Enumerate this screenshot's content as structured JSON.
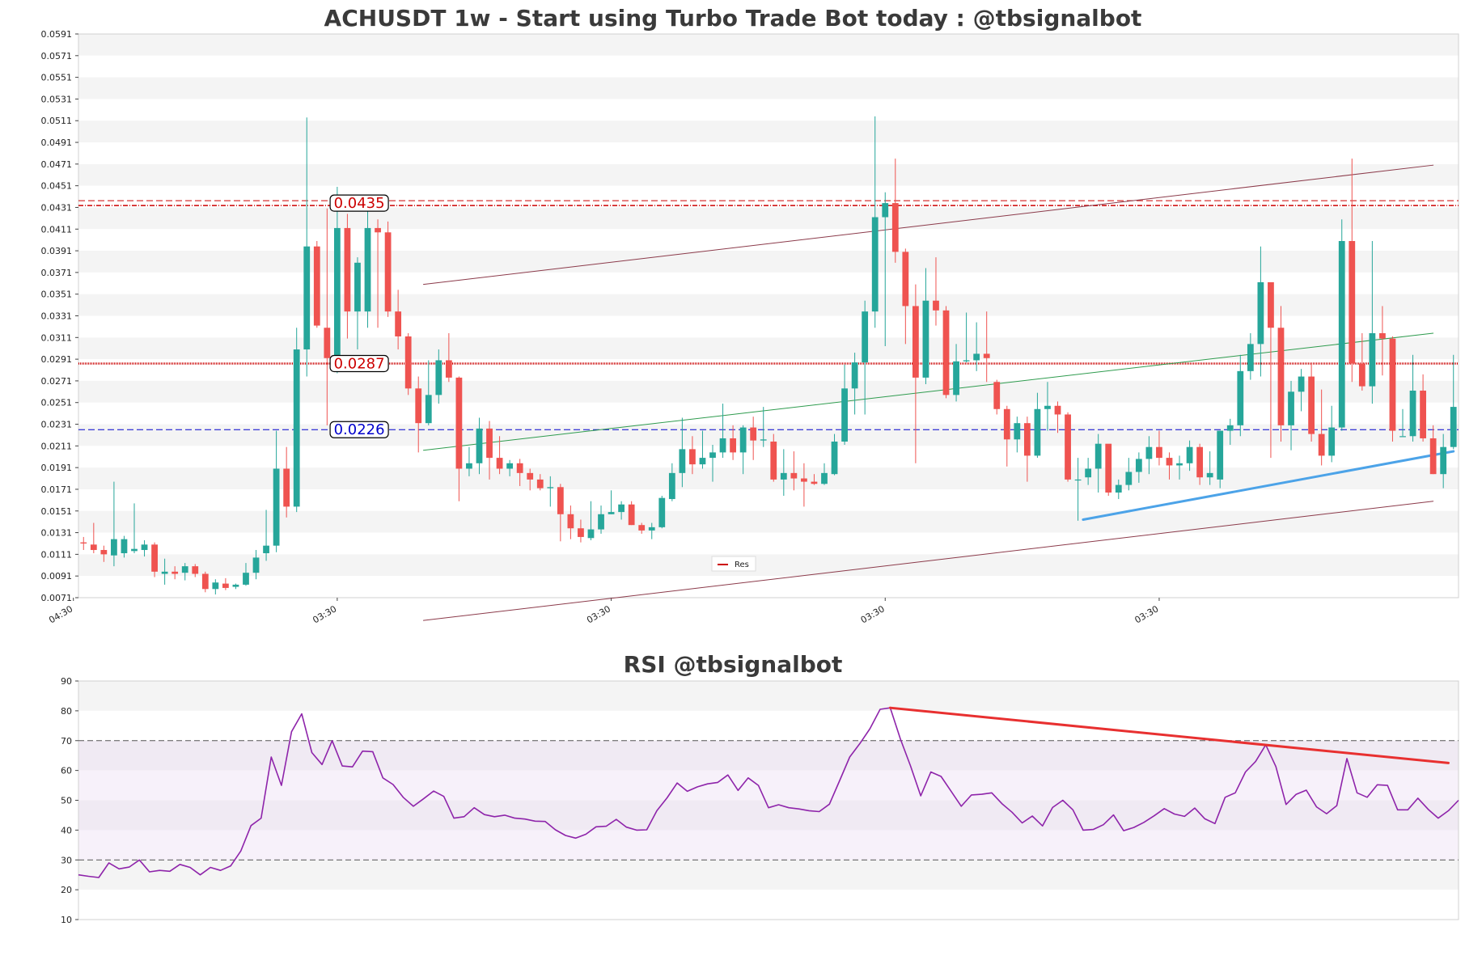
{
  "chart_data": [
    {
      "type": "candlestick",
      "title": "ACHUSDT 1w - Start using Turbo Trade Bot today : @tbsignalbot",
      "ylim": [
        0.0071,
        0.0591
      ],
      "yticks": [
        "0.0591",
        "0.0571",
        "0.0551",
        "0.0531",
        "0.0511",
        "0.0491",
        "0.0471",
        "0.0451",
        "0.0431",
        "0.0411",
        "0.0391",
        "0.0371",
        "0.0351",
        "0.0331",
        "0.0311",
        "0.0291",
        "0.0271",
        "0.0251",
        "0.0231",
        "0.0211",
        "0.0191",
        "0.0171",
        "0.0151",
        "0.0131",
        "0.0111",
        "0.0091",
        "0.0071"
      ],
      "xticks": [
        {
          "label": "04:30",
          "index": -1
        },
        {
          "label": "03:30",
          "index": 25
        },
        {
          "label": "03:30",
          "index": 52
        },
        {
          "label": "03:30",
          "index": 79
        },
        {
          "label": "03:30",
          "index": 106
        }
      ],
      "n_slots": 136,
      "candles": [
        [
          0.0122,
          0.0127,
          0.0115,
          0.0121
        ],
        [
          0.012,
          0.014,
          0.0112,
          0.0115
        ],
        [
          0.0115,
          0.0119,
          0.0104,
          0.0111
        ],
        [
          0.011,
          0.0178,
          0.01,
          0.0125
        ],
        [
          0.0112,
          0.0128,
          0.0108,
          0.0125
        ],
        [
          0.0114,
          0.0158,
          0.0112,
          0.0116
        ],
        [
          0.0115,
          0.0124,
          0.0109,
          0.012
        ],
        [
          0.012,
          0.0122,
          0.009,
          0.0095
        ],
        [
          0.0093,
          0.0107,
          0.0083,
          0.0095
        ],
        [
          0.0095,
          0.01,
          0.0088,
          0.0093
        ],
        [
          0.0094,
          0.0103,
          0.0087,
          0.01
        ],
        [
          0.01,
          0.0102,
          0.009,
          0.0093
        ],
        [
          0.0093,
          0.0095,
          0.0076,
          0.0079
        ],
        [
          0.0079,
          0.0088,
          0.0074,
          0.0085
        ],
        [
          0.0084,
          0.0089,
          0.0078,
          0.008
        ],
        [
          0.0081,
          0.0084,
          0.0079,
          0.0083
        ],
        [
          0.0083,
          0.0103,
          0.0082,
          0.0094
        ],
        [
          0.0094,
          0.0115,
          0.0088,
          0.0108
        ],
        [
          0.0112,
          0.0152,
          0.0105,
          0.0119
        ],
        [
          0.0119,
          0.0225,
          0.0113,
          0.019
        ],
        [
          0.019,
          0.021,
          0.0145,
          0.0155
        ],
        [
          0.0155,
          0.032,
          0.015,
          0.03
        ],
        [
          0.03,
          0.0514,
          0.0275,
          0.0395
        ],
        [
          0.0395,
          0.04,
          0.032,
          0.0322
        ],
        [
          0.032,
          0.043,
          0.023,
          0.0292
        ],
        [
          0.0292,
          0.045,
          0.0278,
          0.0412
        ],
        [
          0.0412,
          0.0425,
          0.031,
          0.0335
        ],
        [
          0.0335,
          0.0385,
          0.03,
          0.038
        ],
        [
          0.0335,
          0.043,
          0.032,
          0.0412
        ],
        [
          0.0412,
          0.042,
          0.032,
          0.0408
        ],
        [
          0.0408,
          0.0418,
          0.033,
          0.0335
        ],
        [
          0.0335,
          0.0355,
          0.03,
          0.0312
        ],
        [
          0.0312,
          0.0315,
          0.0258,
          0.0264
        ],
        [
          0.0264,
          0.0275,
          0.0205,
          0.0232
        ],
        [
          0.0232,
          0.029,
          0.023,
          0.0258
        ],
        [
          0.0258,
          0.03,
          0.025,
          0.029
        ],
        [
          0.029,
          0.0315,
          0.027,
          0.0274
        ],
        [
          0.0274,
          0.0275,
          0.016,
          0.019
        ],
        [
          0.019,
          0.021,
          0.0183,
          0.0195
        ],
        [
          0.0195,
          0.0237,
          0.0185,
          0.0227
        ],
        [
          0.0227,
          0.0234,
          0.018,
          0.02
        ],
        [
          0.02,
          0.022,
          0.0185,
          0.019
        ],
        [
          0.019,
          0.0198,
          0.0183,
          0.0195
        ],
        [
          0.0195,
          0.0199,
          0.0174,
          0.0186
        ],
        [
          0.0186,
          0.019,
          0.017,
          0.018
        ],
        [
          0.018,
          0.0185,
          0.017,
          0.0172
        ],
        [
          0.0172,
          0.0183,
          0.0155,
          0.0173
        ],
        [
          0.0173,
          0.0176,
          0.0123,
          0.0148
        ],
        [
          0.0148,
          0.0156,
          0.0125,
          0.0135
        ],
        [
          0.0135,
          0.0143,
          0.0122,
          0.0127
        ],
        [
          0.0126,
          0.016,
          0.0124,
          0.0134
        ],
        [
          0.0134,
          0.0156,
          0.013,
          0.0148
        ],
        [
          0.0148,
          0.017,
          0.0148,
          0.015
        ],
        [
          0.015,
          0.016,
          0.0143,
          0.0157
        ],
        [
          0.0157,
          0.016,
          0.0138,
          0.0138
        ],
        [
          0.0138,
          0.014,
          0.013,
          0.0133
        ],
        [
          0.0133,
          0.014,
          0.0125,
          0.0136
        ],
        [
          0.0136,
          0.0165,
          0.0135,
          0.0163
        ],
        [
          0.0162,
          0.0195,
          0.016,
          0.0186
        ],
        [
          0.0186,
          0.0237,
          0.0173,
          0.0208
        ],
        [
          0.0208,
          0.022,
          0.0185,
          0.0194
        ],
        [
          0.0194,
          0.0225,
          0.019,
          0.02
        ],
        [
          0.02,
          0.0212,
          0.0178,
          0.0205
        ],
        [
          0.0205,
          0.025,
          0.02,
          0.0218
        ],
        [
          0.0218,
          0.023,
          0.0198,
          0.0205
        ],
        [
          0.0205,
          0.023,
          0.0185,
          0.0228
        ],
        [
          0.0228,
          0.0238,
          0.0198,
          0.0216
        ],
        [
          0.0216,
          0.0247,
          0.021,
          0.0217
        ],
        [
          0.0215,
          0.0222,
          0.0178,
          0.018
        ],
        [
          0.018,
          0.0208,
          0.0165,
          0.0186
        ],
        [
          0.0186,
          0.0206,
          0.017,
          0.0181
        ],
        [
          0.0181,
          0.0195,
          0.0155,
          0.0178
        ],
        [
          0.0178,
          0.0185,
          0.0175,
          0.0176
        ],
        [
          0.0176,
          0.0195,
          0.0175,
          0.0186
        ],
        [
          0.0185,
          0.0222,
          0.0184,
          0.0215
        ],
        [
          0.0215,
          0.0286,
          0.0212,
          0.0264
        ],
        [
          0.0264,
          0.0297,
          0.024,
          0.0288
        ],
        [
          0.0288,
          0.0345,
          0.024,
          0.0335
        ],
        [
          0.0335,
          0.0515,
          0.032,
          0.0422
        ],
        [
          0.0422,
          0.0445,
          0.0303,
          0.0435
        ],
        [
          0.0435,
          0.0476,
          0.038,
          0.039
        ],
        [
          0.039,
          0.0393,
          0.0305,
          0.034
        ],
        [
          0.034,
          0.036,
          0.0195,
          0.0274
        ],
        [
          0.0274,
          0.0375,
          0.0268,
          0.0345
        ],
        [
          0.0345,
          0.0385,
          0.0322,
          0.0336
        ],
        [
          0.0336,
          0.034,
          0.0255,
          0.0258
        ],
        [
          0.0258,
          0.0305,
          0.0252,
          0.0289
        ],
        [
          0.0289,
          0.0334,
          0.0288,
          0.029
        ],
        [
          0.029,
          0.0325,
          0.028,
          0.0296
        ],
        [
          0.0296,
          0.0335,
          0.027,
          0.0292
        ],
        [
          0.027,
          0.0272,
          0.024,
          0.0245
        ],
        [
          0.0245,
          0.0248,
          0.0192,
          0.0217
        ],
        [
          0.0217,
          0.0238,
          0.0205,
          0.0232
        ],
        [
          0.0232,
          0.0238,
          0.0178,
          0.0202
        ],
        [
          0.0202,
          0.026,
          0.02,
          0.0245
        ],
        [
          0.0245,
          0.027,
          0.0225,
          0.0248
        ],
        [
          0.0248,
          0.0252,
          0.0223,
          0.024
        ],
        [
          0.024,
          0.0242,
          0.0178,
          0.018
        ],
        [
          0.018,
          0.02,
          0.0142,
          0.018
        ],
        [
          0.0182,
          0.02,
          0.0175,
          0.019
        ],
        [
          0.019,
          0.0222,
          0.0168,
          0.0213
        ],
        [
          0.0213,
          0.0212,
          0.0165,
          0.0168
        ],
        [
          0.0168,
          0.018,
          0.0162,
          0.0175
        ],
        [
          0.0175,
          0.02,
          0.017,
          0.0187
        ],
        [
          0.0187,
          0.0205,
          0.0177,
          0.0199
        ],
        [
          0.0199,
          0.022,
          0.0185,
          0.021
        ],
        [
          0.021,
          0.0225,
          0.0193,
          0.02
        ],
        [
          0.02,
          0.0205,
          0.018,
          0.0193
        ],
        [
          0.0193,
          0.0202,
          0.018,
          0.0195
        ],
        [
          0.0195,
          0.0216,
          0.0188,
          0.021
        ],
        [
          0.021,
          0.0213,
          0.0175,
          0.0182
        ],
        [
          0.0182,
          0.0206,
          0.0175,
          0.0186
        ],
        [
          0.018,
          0.0225,
          0.0172,
          0.0225
        ],
        [
          0.0225,
          0.0236,
          0.0212,
          0.023
        ],
        [
          0.023,
          0.0295,
          0.022,
          0.028
        ],
        [
          0.028,
          0.0315,
          0.0272,
          0.0305
        ],
        [
          0.0305,
          0.0395,
          0.0275,
          0.0362
        ],
        [
          0.0362,
          0.0362,
          0.02,
          0.032
        ],
        [
          0.032,
          0.034,
          0.0215,
          0.023
        ],
        [
          0.023,
          0.0271,
          0.0207,
          0.0261
        ],
        [
          0.0261,
          0.0282,
          0.0243,
          0.0275
        ],
        [
          0.0275,
          0.0287,
          0.0215,
          0.0222
        ],
        [
          0.0222,
          0.0263,
          0.0193,
          0.0202
        ],
        [
          0.0202,
          0.0248,
          0.0196,
          0.0228
        ],
        [
          0.0228,
          0.042,
          0.0225,
          0.04
        ],
        [
          0.04,
          0.0476,
          0.027,
          0.0287
        ],
        [
          0.0287,
          0.0315,
          0.0262,
          0.0266
        ],
        [
          0.0266,
          0.04,
          0.025,
          0.0315
        ],
        [
          0.0315,
          0.034,
          0.0276,
          0.031
        ],
        [
          0.031,
          0.0312,
          0.0215,
          0.0225
        ],
        [
          0.022,
          0.0245,
          0.022,
          0.022
        ],
        [
          0.022,
          0.0295,
          0.0215,
          0.0262
        ],
        [
          0.0262,
          0.0277,
          0.0215,
          0.0218
        ],
        [
          0.0218,
          0.023,
          0.0185,
          0.0185
        ],
        [
          0.0185,
          0.0222,
          0.0172,
          0.021
        ],
        [
          0.021,
          0.0295,
          0.0208,
          0.0247
        ]
      ],
      "horizontal_levels": [
        {
          "value": 0.0435,
          "label": "0.0435",
          "color": "#cc0000",
          "style": "dashed"
        },
        {
          "value": 0.0287,
          "label": "0.0287",
          "color": "#cc0000",
          "style": "dotted"
        },
        {
          "value": 0.0226,
          "label": "0.0226",
          "color": "#0000cc",
          "style": "dashed"
        }
      ],
      "trend_lines": [
        {
          "from": [
            33.5,
            0.036
          ],
          "to": [
            133,
            0.047
          ],
          "color": "#8b3a4a",
          "width": 1
        },
        {
          "from": [
            33.5,
            0.005
          ],
          "to": [
            133,
            0.016
          ],
          "color": "#8b3a4a",
          "width": 1
        },
        {
          "from": [
            33.5,
            0.0207
          ],
          "to": [
            133,
            0.0315
          ],
          "color": "#2e9b4e",
          "width": 1
        },
        {
          "from": [
            98.5,
            0.0143
          ],
          "to": [
            135,
            0.0206
          ],
          "color": "#4ca3e8",
          "width": 3
        }
      ],
      "legend": {
        "label": "Res",
        "color": "#cc0000",
        "position": "lower-center"
      },
      "colors": {
        "up": "#26a69a",
        "down": "#ef5350"
      }
    },
    {
      "type": "line",
      "title": "RSI @tbsignalbot",
      "ylim": [
        10,
        90
      ],
      "yticks": [
        90,
        80,
        70,
        60,
        50,
        40,
        30,
        20,
        10
      ],
      "levels": [
        70,
        30
      ],
      "values": [
        25,
        24.5,
        24.1,
        29,
        27,
        27.6,
        30,
        26,
        26.5,
        26.2,
        28.5,
        27.5,
        25,
        27.5,
        26.5,
        28,
        33,
        41.5,
        44,
        64.5,
        55,
        73,
        79,
        66,
        62,
        70,
        61.5,
        61.2,
        66.5,
        66.3,
        57.5,
        55.3,
        51,
        48,
        50.5,
        53.1,
        51.3,
        44,
        44.5,
        47.5,
        45.2,
        44.5,
        45,
        44,
        43.7,
        43,
        42.9,
        40.1,
        38.2,
        37.3,
        38.6,
        41.1,
        41.3,
        43.6,
        41,
        40,
        40.1,
        46.5,
        50.8,
        55.8,
        53,
        54.5,
        55.5,
        56,
        58.5,
        53.3,
        57.5,
        55,
        47.5,
        48.5,
        47.5,
        47.1,
        46.5,
        46.2,
        48.7,
        56.5,
        64.5,
        69,
        74,
        80.5,
        81,
        70.5,
        61.5,
        51.5,
        59.5,
        58,
        53,
        48,
        51.8,
        52,
        52.5,
        48.9,
        46,
        42.4,
        44.7,
        41.4,
        47.6,
        50,
        46.8,
        40,
        40.2,
        41.8,
        45.1,
        39.8,
        40.9,
        42.6,
        44.8,
        47.2,
        45.4,
        44.6,
        47.4,
        43.8,
        42.2,
        51,
        52.5,
        59.5,
        63,
        68.6,
        61.3,
        48.6,
        52,
        53.4,
        47.8,
        45.5,
        48.2,
        64,
        52.5,
        51,
        55.2,
        55,
        46.8,
        46.8,
        50.7,
        47,
        44,
        46.5,
        50
      ],
      "trend_line": {
        "from": [
          80,
          81
        ],
        "to": [
          135,
          62.5
        ],
        "color": "#e83030",
        "width": 3
      },
      "line_color": "#8e24aa"
    }
  ]
}
